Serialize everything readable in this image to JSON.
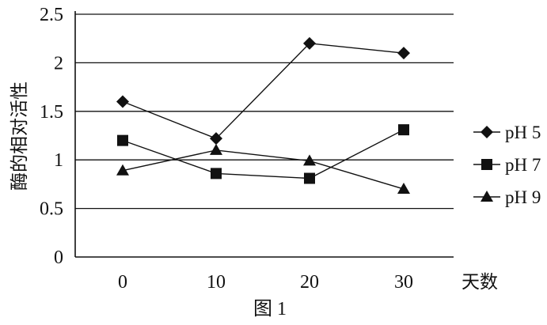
{
  "chart_data": {
    "type": "line",
    "categories": [
      "0",
      "10",
      "20",
      "30"
    ],
    "x": [
      0,
      10,
      20,
      30
    ],
    "series": [
      {
        "name": "pH 5",
        "marker": "diamond",
        "values": [
          1.6,
          1.22,
          2.2,
          2.1
        ]
      },
      {
        "name": "pH 7",
        "marker": "square",
        "values": [
          1.2,
          0.86,
          0.81,
          1.31
        ]
      },
      {
        "name": "pH 9",
        "marker": "triangle",
        "values": [
          0.89,
          1.1,
          0.99,
          0.7
        ]
      }
    ],
    "title": "",
    "xlabel": "天数",
    "ylabel": "酶的相对活性",
    "caption": "图 1",
    "ylim": [
      0,
      2.5
    ],
    "yticks": [
      "0",
      "0.5",
      "1",
      "1.5",
      "2",
      "2.5"
    ],
    "grid": true,
    "legend": "right"
  },
  "colors": {
    "ink": "#111111",
    "background": "#ffffff"
  }
}
